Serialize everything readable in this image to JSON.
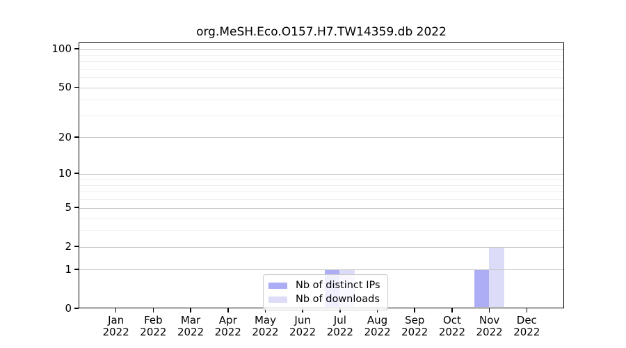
{
  "chart_data": {
    "type": "bar",
    "title": "org.MeSH.Eco.O157.H7.TW14359.db 2022",
    "categories": [
      "Jan",
      "Feb",
      "Mar",
      "Apr",
      "May",
      "Jun",
      "Jul",
      "Aug",
      "Sep",
      "Oct",
      "Nov",
      "Dec"
    ],
    "year_label": "2022",
    "series": [
      {
        "name": "Nb of distinct IPs",
        "color": "#adadf6",
        "values": [
          0,
          0,
          0,
          0,
          0,
          0,
          1,
          0,
          0,
          0,
          1,
          0
        ]
      },
      {
        "name": "Nb of downloads",
        "color": "#dcdcf8",
        "values": [
          0,
          0,
          0,
          0,
          0,
          0,
          1,
          0,
          0,
          0,
          2,
          0
        ]
      }
    ],
    "yscale": "log1p",
    "ylim": [
      0,
      112
    ],
    "yticks": [
      0,
      1,
      2,
      5,
      10,
      20,
      50,
      100
    ],
    "ytick_labels": [
      "0",
      "1",
      "2",
      "5",
      "10",
      "20",
      "50",
      "100"
    ],
    "major_gridlines": [
      1,
      2,
      5,
      10,
      20,
      50,
      100
    ],
    "minor_gridlines": [
      3,
      4,
      6,
      7,
      8,
      9,
      30,
      40,
      60,
      70,
      80,
      90
    ],
    "grid": true,
    "legend_position": "lower center",
    "colors": {
      "spine": "#000000",
      "major_grid": "#c9c9c9",
      "minor_grid": "#efefef",
      "text": "#000000",
      "legend_border": "#cccccc",
      "background": "#ffffff"
    }
  }
}
